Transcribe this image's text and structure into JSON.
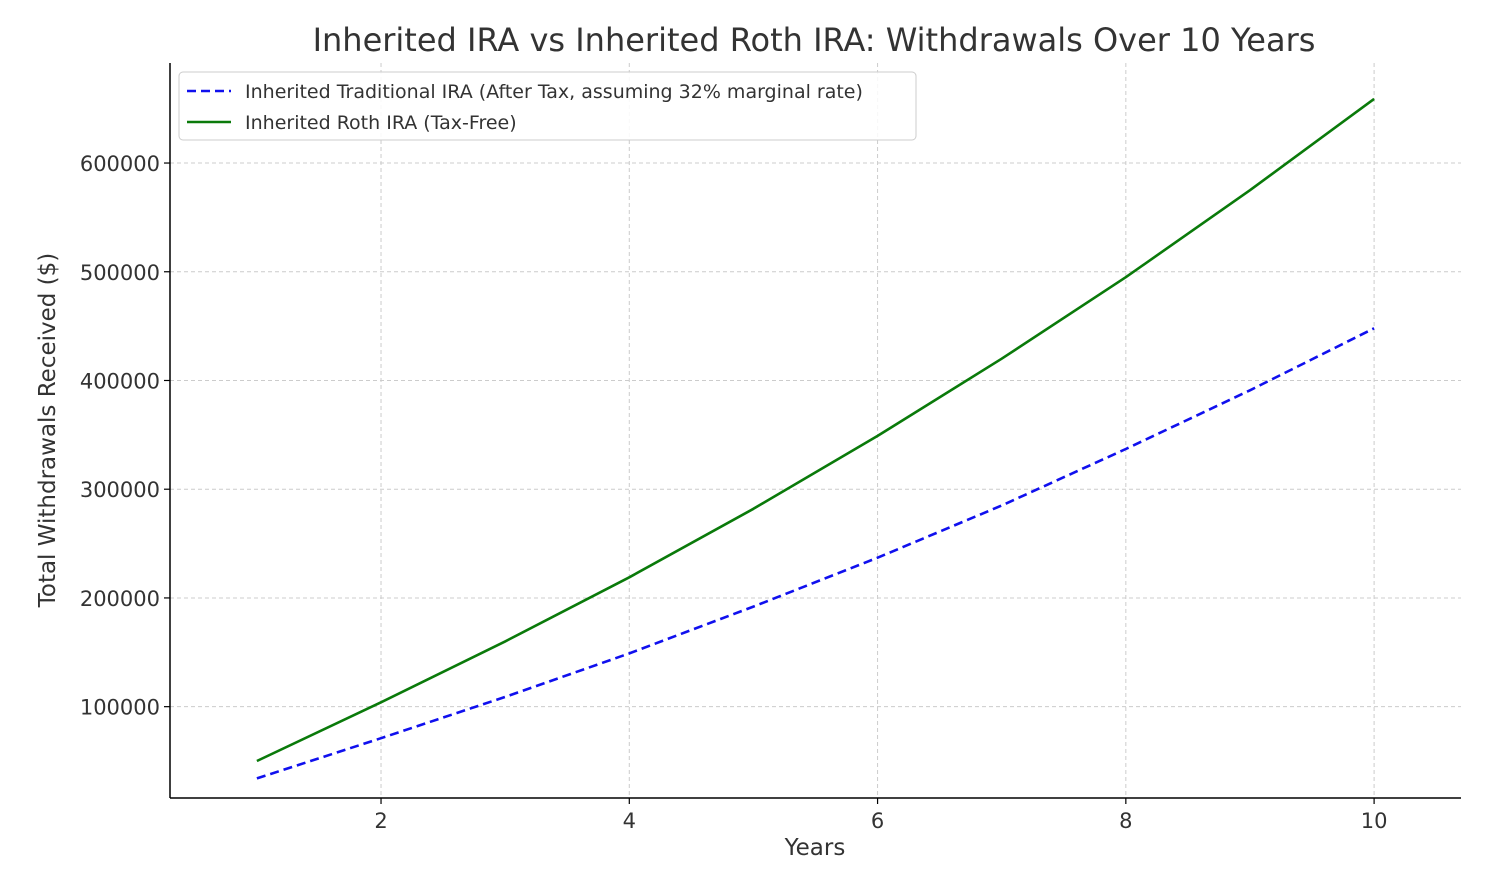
{
  "chart_data": {
    "type": "line",
    "title": "Inherited IRA vs Inherited Roth IRA: Withdrawals Over 10 Years",
    "xlabel": "Years",
    "ylabel": "Total Withdrawals Received ($)",
    "x": [
      1,
      2,
      3,
      4,
      5,
      6,
      7,
      8,
      9,
      10
    ],
    "xlim": [
      0.3,
      10.7
    ],
    "ylim": [
      16000,
      692000
    ],
    "xticks": [
      2,
      4,
      6,
      8,
      10
    ],
    "yticks": [
      100000,
      200000,
      300000,
      400000,
      500000,
      600000
    ],
    "grid": true,
    "legend_position": "top-left",
    "series": [
      {
        "name": "Inherited Traditional IRA (After Tax, assuming 32% marginal rate)",
        "color": "#1010ee",
        "line_style": "dashed",
        "values": [
          34000,
          71000,
          109000,
          149000,
          192000,
          237000,
          285000,
          337000,
          391000,
          448000
        ]
      },
      {
        "name": "Inherited Roth IRA (Tax-Free)",
        "color": "#0a7a0a",
        "line_style": "solid",
        "values": [
          50000,
          104000,
          160000,
          219000,
          282000,
          349000,
          420000,
          495000,
          575000,
          659000
        ]
      }
    ]
  }
}
